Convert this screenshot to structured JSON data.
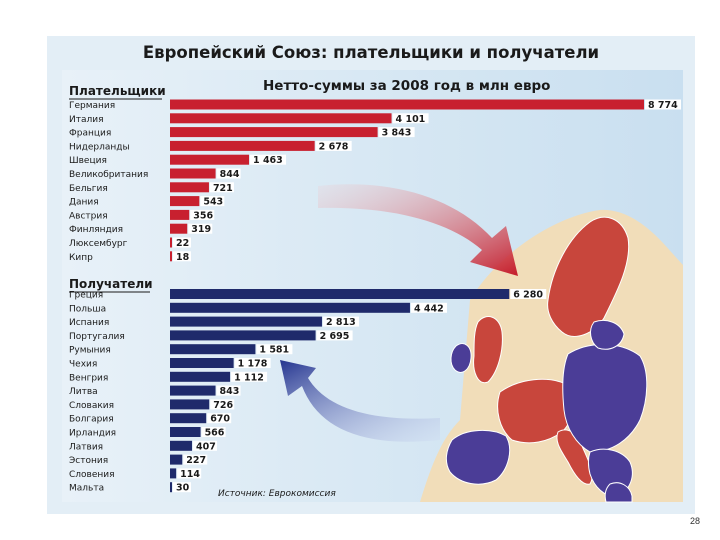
{
  "title": "Европейский Союз: плательщики и получатели",
  "page_number": "28",
  "colors": {
    "payers": "#c8202f",
    "recipients": "#1f2a6b",
    "map_payers": "#c8463c",
    "map_recipients": "#4b3d97",
    "sea": "#cfe3f1",
    "land": "#f1ddb9"
  },
  "chart_data": [
    {
      "type": "bar",
      "title": "Нетто-суммы за 2008 год в млн евро",
      "source": "Источник: Еврокомиссия",
      "series": [
        {
          "name": "Плательщики",
          "categories": [
            "Германия",
            "Италия",
            "Франция",
            "Нидерланды",
            "Швеция",
            "Великобритания",
            "Бельгия",
            "Дания",
            "Австрия",
            "Финляндия",
            "Люксембург",
            "Кипр"
          ],
          "values": [
            8774,
            4101,
            3843,
            2678,
            1463,
            844,
            721,
            543,
            356,
            319,
            22,
            18
          ],
          "labels": [
            "8 774",
            "4 101",
            "3 843",
            "2 678",
            "1 463",
            "844",
            "721",
            "543",
            "356",
            "319",
            "22",
            "18"
          ]
        },
        {
          "name": "Получатели",
          "categories": [
            "Греция",
            "Польша",
            "Испания",
            "Португалия",
            "Румыния",
            "Чехия",
            "Венгрия",
            "Литва",
            "Словакия",
            "Болгария",
            "Ирландия",
            "Латвия",
            "Эстония",
            "Словения",
            "Мальта"
          ],
          "values": [
            6280,
            4442,
            2813,
            2695,
            1581,
            1178,
            1112,
            843,
            726,
            670,
            566,
            407,
            227,
            114,
            30
          ],
          "labels": [
            "6 280",
            "4 442",
            "2 813",
            "2 695",
            "1 581",
            "1 178",
            "1 112",
            "843",
            "726",
            "670",
            "566",
            "407",
            "227",
            "114",
            "30"
          ]
        }
      ]
    }
  ]
}
